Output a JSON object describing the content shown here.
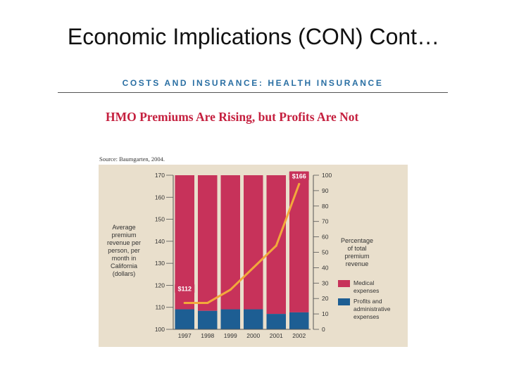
{
  "slide": {
    "title": "Economic Implications (CON) Cont…"
  },
  "header": {
    "section": "COSTS AND INSURANCE: HEALTH INSURANCE"
  },
  "chart_data": {
    "type": "bar",
    "title": "HMO Premiums Are Rising, but Profits Are Not",
    "source": "Source: Baumgarten, 2004.",
    "categories": [
      "1997",
      "1998",
      "1999",
      "2000",
      "2001",
      "2002"
    ],
    "series": [
      {
        "name": "Profits and administrative expenses",
        "color": "#1d5e93",
        "values": [
          13,
          12,
          13,
          13,
          10,
          11
        ],
        "unit": "percent of total premium revenue"
      },
      {
        "name": "Medical expenses",
        "color": "#c7325a",
        "values": [
          87,
          88,
          87,
          87,
          90,
          89
        ],
        "unit": "percent of total premium revenue"
      }
    ],
    "line": {
      "name": "Average premium revenue per person, per month in California (dollars)",
      "color": "#f2a93b",
      "values": [
        112,
        112,
        118,
        128,
        138,
        166
      ]
    },
    "annotations": [
      {
        "category": "1997",
        "label": "$112"
      },
      {
        "category": "2002",
        "label": "$166"
      }
    ],
    "y_left": {
      "label": [
        "Average",
        "premium",
        "revenue per",
        "person, per",
        "month in",
        "California",
        "(dollars)"
      ],
      "ylim": [
        100,
        170
      ],
      "ticks": [
        "100",
        "110",
        "120",
        "130",
        "140",
        "150",
        "160",
        "170"
      ]
    },
    "y_right": {
      "label": [
        "Percentage",
        "of total",
        "premium",
        "revenue"
      ],
      "ylim": [
        0,
        100
      ],
      "ticks": [
        "0",
        "10",
        "20",
        "30",
        "40",
        "50",
        "60",
        "70",
        "80",
        "90",
        "100"
      ]
    },
    "legend": [
      {
        "label": [
          "Medical",
          "expenses"
        ],
        "color": "#c7325a"
      },
      {
        "label": [
          "Profits and",
          "administrative",
          "expenses"
        ],
        "color": "#1d5e93"
      }
    ]
  }
}
